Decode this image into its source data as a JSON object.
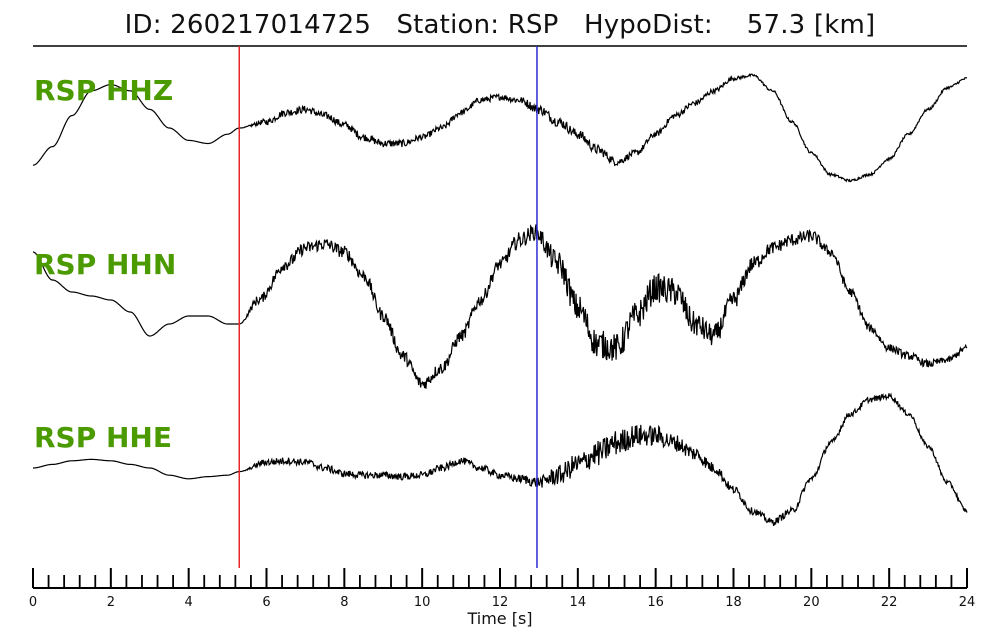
{
  "header": {
    "title": "ID: 260217014725   Station: RSP   HypoDist:    57.3 [km]"
  },
  "colors": {
    "label": "#4a9a00",
    "trace": "#000000",
    "p_pick": "#e8262a",
    "s_pick": "#2b2bd0",
    "axis": "#000000"
  },
  "chart_data": {
    "type": "line",
    "title": "ID: 260217014725   Station: RSP   HypoDist:    57.3 [km]",
    "xlabel": "Time [s]",
    "ylabel": "",
    "xlim": [
      0,
      24
    ],
    "x_ticks": [
      0,
      2,
      4,
      6,
      8,
      10,
      12,
      14,
      16,
      18,
      20,
      22,
      24
    ],
    "minor_tick_step": 0.4,
    "grid": false,
    "legend": "none",
    "picks": [
      {
        "phase": "P",
        "time": 5.3,
        "color": "#e8262a"
      },
      {
        "phase": "S",
        "time": 12.95,
        "color": "#2b2bd0"
      }
    ],
    "series": [
      {
        "name": "RSP HHZ",
        "x": [
          0,
          0.5,
          1,
          1.5,
          2,
          2.5,
          3,
          3.5,
          4,
          4.5,
          5,
          5.3,
          6,
          6.5,
          7,
          7.5,
          8,
          8.5,
          9,
          9.5,
          10,
          10.5,
          11,
          11.5,
          12,
          12.5,
          13,
          13.5,
          14,
          14.5,
          15,
          15.5,
          16,
          16.5,
          17,
          17.5,
          18,
          18.5,
          19,
          19.5,
          20,
          20.5,
          21,
          21.5,
          22,
          22.5,
          23,
          23.5,
          24
        ],
        "values": [
          -0.6,
          -0.3,
          0.2,
          0.6,
          0.7,
          0.6,
          0.3,
          0.0,
          -0.2,
          -0.25,
          -0.1,
          0.0,
          0.1,
          0.25,
          0.3,
          0.2,
          0.05,
          -0.15,
          -0.25,
          -0.25,
          -0.15,
          0.0,
          0.25,
          0.45,
          0.5,
          0.45,
          0.3,
          0.1,
          -0.1,
          -0.35,
          -0.55,
          -0.4,
          -0.1,
          0.2,
          0.4,
          0.6,
          0.8,
          0.85,
          0.6,
          0.1,
          -0.4,
          -0.75,
          -0.85,
          -0.75,
          -0.5,
          -0.1,
          0.3,
          0.65,
          0.8
        ],
        "noise": [
          0,
          0,
          0,
          0,
          0,
          0,
          0,
          0,
          0,
          0,
          0,
          0,
          0.05,
          0.06,
          0.06,
          0.06,
          0.06,
          0.06,
          0.06,
          0.06,
          0.05,
          0.05,
          0.05,
          0.05,
          0.05,
          0.06,
          0.08,
          0.08,
          0.08,
          0.08,
          0.06,
          0.05,
          0.05,
          0.05,
          0.05,
          0.04,
          0.03,
          0.02,
          0.02,
          0.02,
          0.02,
          0.02,
          0.02,
          0.02,
          0.02,
          0.02,
          0.02,
          0.02,
          0.02
        ]
      },
      {
        "name": "RSP HHN",
        "x": [
          0,
          0.5,
          1,
          1.5,
          2,
          2.5,
          3,
          3.5,
          4,
          4.5,
          5,
          5.3,
          5.8,
          6.5,
          7,
          7.5,
          8,
          8.5,
          9,
          9.5,
          10,
          10.5,
          11,
          11.5,
          12,
          12.5,
          12.9,
          13.5,
          14,
          14.5,
          15,
          15.5,
          16,
          16.5,
          17,
          17.5,
          18,
          18.5,
          19,
          19.5,
          20,
          20.5,
          21,
          21.5,
          22,
          22.5,
          23,
          23.5,
          24
        ],
        "values": [
          0.7,
          0.35,
          0.2,
          0.15,
          0.1,
          -0.05,
          -0.35,
          -0.2,
          -0.1,
          -0.1,
          -0.2,
          -0.2,
          0.1,
          0.55,
          0.75,
          0.8,
          0.7,
          0.4,
          -0.1,
          -0.6,
          -0.95,
          -0.75,
          -0.35,
          0.1,
          0.55,
          0.85,
          0.95,
          0.55,
          0.0,
          -0.45,
          -0.5,
          -0.1,
          0.25,
          0.2,
          -0.2,
          -0.35,
          0.1,
          0.55,
          0.75,
          0.85,
          0.9,
          0.7,
          0.2,
          -0.25,
          -0.5,
          -0.6,
          -0.7,
          -0.65,
          -0.5
        ],
        "noise": [
          0,
          0,
          0,
          0,
          0,
          0,
          0,
          0,
          0,
          0,
          0,
          0,
          0.06,
          0.08,
          0.08,
          0.08,
          0.08,
          0.08,
          0.08,
          0.08,
          0.08,
          0.08,
          0.08,
          0.08,
          0.08,
          0.1,
          0.1,
          0.16,
          0.18,
          0.18,
          0.18,
          0.18,
          0.18,
          0.18,
          0.16,
          0.14,
          0.12,
          0.1,
          0.08,
          0.08,
          0.08,
          0.06,
          0.06,
          0.05,
          0.05,
          0.05,
          0.05,
          0.04,
          0.04
        ]
      },
      {
        "name": "RSP HHE",
        "x": [
          0,
          0.5,
          1,
          1.5,
          2,
          2.5,
          3,
          3.5,
          4,
          4.5,
          5,
          5.3,
          6,
          6.5,
          7,
          7.5,
          8,
          8.5,
          9,
          9.5,
          10,
          10.5,
          11,
          11.5,
          12,
          12.5,
          13,
          13.5,
          14,
          14.5,
          15,
          15.5,
          16,
          16.5,
          17,
          17.5,
          18,
          18.5,
          19,
          19.5,
          20,
          20.5,
          21,
          21.5,
          22,
          22.5,
          23,
          23.5,
          24
        ],
        "values": [
          0.0,
          0.05,
          0.1,
          0.12,
          0.1,
          0.05,
          0.0,
          -0.1,
          -0.15,
          -0.12,
          -0.1,
          -0.05,
          0.08,
          0.1,
          0.08,
          0.0,
          -0.08,
          -0.1,
          -0.1,
          -0.12,
          -0.1,
          0.0,
          0.1,
          0.0,
          -0.1,
          -0.15,
          -0.2,
          -0.1,
          0.05,
          0.2,
          0.35,
          0.45,
          0.45,
          0.35,
          0.2,
          0.0,
          -0.3,
          -0.6,
          -0.75,
          -0.6,
          -0.15,
          0.35,
          0.75,
          0.95,
          1.0,
          0.75,
          0.3,
          -0.2,
          -0.6
        ],
        "noise": [
          0,
          0,
          0,
          0,
          0,
          0,
          0,
          0,
          0,
          0,
          0,
          0,
          0.05,
          0.05,
          0.05,
          0.05,
          0.05,
          0.05,
          0.05,
          0.05,
          0.05,
          0.05,
          0.05,
          0.05,
          0.05,
          0.06,
          0.08,
          0.14,
          0.16,
          0.18,
          0.18,
          0.16,
          0.14,
          0.12,
          0.1,
          0.08,
          0.06,
          0.05,
          0.05,
          0.05,
          0.04,
          0.04,
          0.04,
          0.04,
          0.04,
          0.03,
          0.03,
          0.03,
          0.03
        ]
      }
    ]
  }
}
